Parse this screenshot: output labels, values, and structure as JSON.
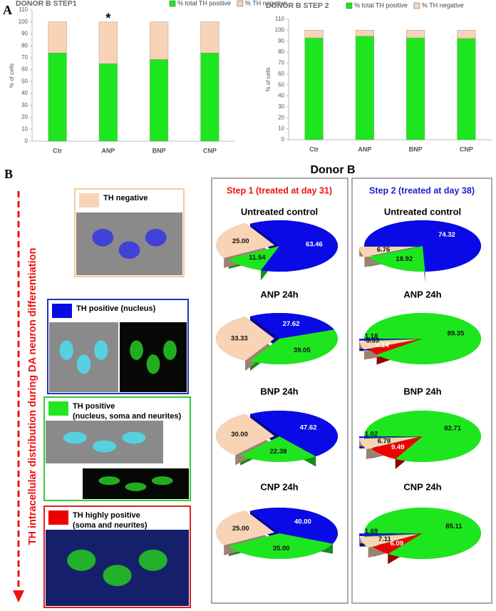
{
  "panel_a": {
    "label": "A"
  },
  "panel_b": {
    "label": "B",
    "title": "Donor B",
    "step1_title": "Step 1 (treated at day 31)",
    "step2_title": "Step 2 (treated at day 38)",
    "arrow_label": "TH intracellular distribution during DA neuron differentiation",
    "legend_boxes": [
      {
        "lines": [
          "TH negative"
        ],
        "color": "#f8d3b5",
        "border": "#f4c9a0"
      },
      {
        "lines": [
          "TH positive (nucleus)"
        ],
        "color": "#0a0ae6",
        "border": "#2233bb"
      },
      {
        "lines": [
          "TH positive",
          "(nucleus, soma and neurites)"
        ],
        "color": "#22e622",
        "border": "#33cc33"
      },
      {
        "lines": [
          "TH highly positive",
          "(soma and neurites)"
        ],
        "color": "#ee0000",
        "border": "#dd2222"
      }
    ]
  },
  "chart_data": [
    {
      "type": "bar",
      "stacked": true,
      "title": "DONOR B STEP1",
      "ylabel": "% of cells",
      "categories": [
        "Ctr",
        "ANP",
        "BNP",
        "CNP"
      ],
      "series": [
        {
          "name": "% total TH positive",
          "color": "#1ee61e",
          "values": [
            74,
            65,
            68.5,
            74
          ]
        },
        {
          "name": "% TH negative",
          "color": "#f8d3b5",
          "values": [
            26,
            35,
            31.5,
            26
          ]
        }
      ],
      "ylim": [
        0,
        110
      ],
      "yticks": [
        0,
        10,
        20,
        30,
        40,
        50,
        60,
        70,
        80,
        90,
        100,
        110
      ],
      "annotations": [
        {
          "text": "*",
          "x": "ANP"
        }
      ]
    },
    {
      "type": "bar",
      "stacked": true,
      "title": "DONOR B STEP 2",
      "ylabel": "% of cells",
      "categories": [
        "Ctr",
        "ANP",
        "BNP",
        "CNP"
      ],
      "series": [
        {
          "name": "% total TH positive",
          "color": "#1ee61e",
          "values": [
            93,
            94.5,
            93,
            92.5
          ]
        },
        {
          "name": "% TH negative",
          "color": "#f8d3b5",
          "values": [
            7,
            5.5,
            7,
            7.5
          ]
        }
      ],
      "ylim": [
        0,
        110
      ],
      "yticks": [
        0,
        10,
        20,
        30,
        40,
        50,
        60,
        70,
        80,
        90,
        100,
        110
      ]
    },
    {
      "type": "pie",
      "title": "Untreated control",
      "values": [
        63.46,
        11.54,
        25.0
      ],
      "value_labels": [
        "63.46",
        "11.54",
        "25.00"
      ],
      "colors": [
        "#0a0ae6",
        "#1ee61e",
        "#f8d3b5"
      ]
    },
    {
      "type": "pie",
      "title": "ANP 24h",
      "values": [
        27.62,
        39.05,
        33.33
      ],
      "value_labels": [
        "27.62",
        "39.05",
        "33.33"
      ],
      "colors": [
        "#0a0ae6",
        "#1ee61e",
        "#f8d3b5"
      ]
    },
    {
      "type": "pie",
      "title": "BNP 24h",
      "values": [
        47.62,
        22.38,
        30.0
      ],
      "value_labels": [
        "47.62",
        "22.38",
        "30.00"
      ],
      "colors": [
        "#0a0ae6",
        "#1ee61e",
        "#f8d3b5"
      ]
    },
    {
      "type": "pie",
      "title": "CNP 24h",
      "values": [
        40.0,
        35.0,
        25.0
      ],
      "value_labels": [
        "40.00",
        "35.00",
        "25.00"
      ],
      "colors": [
        "#0a0ae6",
        "#1ee61e",
        "#f8d3b5"
      ]
    },
    {
      "type": "pie",
      "title": "Untreated control",
      "values": [
        74.32,
        18.92,
        6.76
      ],
      "value_labels": [
        "74.32",
        "18.92",
        "6.76"
      ],
      "colors": [
        "#0a0ae6",
        "#1ee61e",
        "#f8d3b5"
      ]
    },
    {
      "type": "pie",
      "title": "ANP 24h",
      "values": [
        89.35,
        4.14,
        5.33,
        1.18
      ],
      "value_labels": [
        "89.35",
        "4.14",
        "5.33",
        "1.18"
      ],
      "colors": [
        "#1ee61e",
        "#ee0000",
        "#f8d3b5",
        "#0a0ae6"
      ]
    },
    {
      "type": "pie",
      "title": "BNP 24h",
      "values": [
        82.71,
        9.49,
        6.78,
        1.02
      ],
      "value_labels": [
        "82.71",
        "9.49",
        "6.78",
        "1.02"
      ],
      "colors": [
        "#1ee61e",
        "#ee0000",
        "#f8d3b5",
        "#0a0ae6"
      ]
    },
    {
      "type": "pie",
      "title": "CNP 24h",
      "values": [
        85.11,
        6.09,
        7.11,
        1.69
      ],
      "value_labels": [
        "85.11",
        "6.09",
        "7.11",
        "1.69"
      ],
      "colors": [
        "#1ee61e",
        "#ee0000",
        "#f8d3b5",
        "#0a0ae6"
      ]
    }
  ]
}
